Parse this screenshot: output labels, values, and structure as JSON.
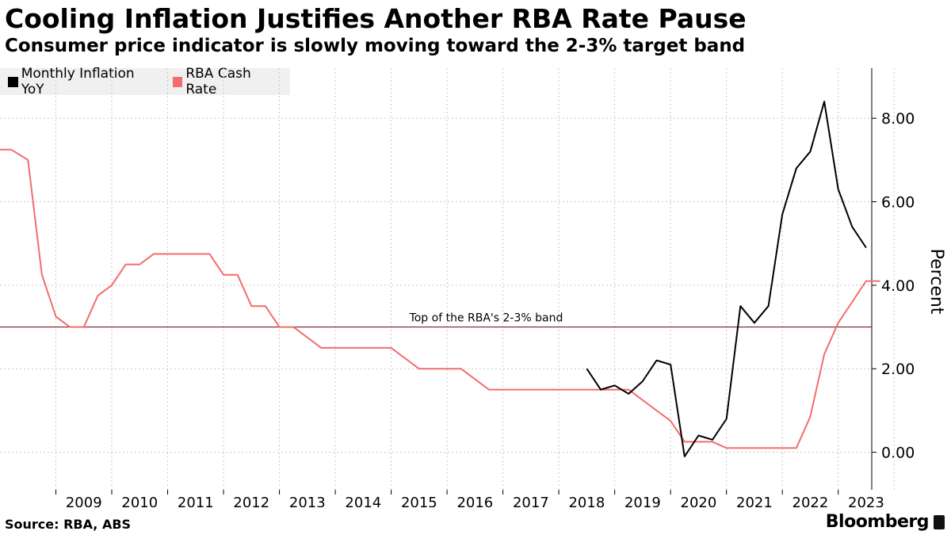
{
  "header": {
    "title": "Cooling Inflation Justifies Another RBA Rate Pause",
    "subtitle": "Consumer price indicator is slowly moving toward the 2-3% target band"
  },
  "footer": {
    "source": "Source: RBA, ABS",
    "brand": "Bloomberg"
  },
  "colors": {
    "inflation": "#000000",
    "cash_rate": "#f26d6d",
    "band_line": "#7a1f2b",
    "grid": "#c8c8c8"
  },
  "chart_data": {
    "type": "line",
    "title": "Cooling Inflation Justifies Another RBA Rate Pause",
    "subtitle": "Consumer price indicator is slowly moving toward the 2-3% target band",
    "ylabel": "Percent",
    "ylim": [
      -0.9,
      9.2
    ],
    "xlim": [
      2008.0,
      2023.6
    ],
    "y_ticks": [
      0,
      2,
      4,
      6,
      8
    ],
    "y_tick_labels": [
      "0.00",
      "2.00",
      "4.00",
      "6.00",
      "8.00"
    ],
    "x_tick_labels": [
      "2009",
      "2010",
      "2011",
      "2012",
      "2013",
      "2014",
      "2015",
      "2016",
      "2017",
      "2018",
      "2019",
      "2020",
      "2021",
      "2022",
      "2023"
    ],
    "grid": true,
    "legend_position": "top-left",
    "annotation": {
      "text": "Top of the RBA's 2-3% band",
      "y": 3
    },
    "series": [
      {
        "name": "Monthly Inflation YoY",
        "color": "#000000",
        "points": [
          [
            2018.5,
            2.0
          ],
          [
            2018.75,
            1.5
          ],
          [
            2019.0,
            1.6
          ],
          [
            2019.25,
            1.4
          ],
          [
            2019.5,
            1.7
          ],
          [
            2019.75,
            2.2
          ],
          [
            2020.0,
            2.1
          ],
          [
            2020.25,
            -0.1
          ],
          [
            2020.5,
            0.4
          ],
          [
            2020.75,
            0.3
          ],
          [
            2021.0,
            0.8
          ],
          [
            2021.25,
            3.5
          ],
          [
            2021.5,
            3.1
          ],
          [
            2021.75,
            3.5
          ],
          [
            2022.0,
            5.7
          ],
          [
            2022.25,
            6.8
          ],
          [
            2022.5,
            7.2
          ],
          [
            2022.75,
            8.4
          ],
          [
            2023.0,
            6.3
          ],
          [
            2023.25,
            5.4
          ],
          [
            2023.5,
            4.9
          ]
        ]
      },
      {
        "name": "RBA Cash Rate",
        "color": "#f26d6d",
        "points": [
          [
            2008.0,
            7.25
          ],
          [
            2008.2,
            7.25
          ],
          [
            2008.5,
            7.0
          ],
          [
            2008.75,
            4.25
          ],
          [
            2009.0,
            3.25
          ],
          [
            2009.25,
            3.0
          ],
          [
            2009.5,
            3.0
          ],
          [
            2009.75,
            3.75
          ],
          [
            2010.0,
            4.0
          ],
          [
            2010.25,
            4.5
          ],
          [
            2010.5,
            4.5
          ],
          [
            2010.75,
            4.75
          ],
          [
            2011.0,
            4.75
          ],
          [
            2011.25,
            4.75
          ],
          [
            2011.5,
            4.75
          ],
          [
            2011.75,
            4.75
          ],
          [
            2012.0,
            4.25
          ],
          [
            2012.25,
            4.25
          ],
          [
            2012.5,
            3.5
          ],
          [
            2012.75,
            3.5
          ],
          [
            2013.0,
            3.0
          ],
          [
            2013.25,
            3.0
          ],
          [
            2013.5,
            2.75
          ],
          [
            2013.75,
            2.5
          ],
          [
            2014.0,
            2.5
          ],
          [
            2015.0,
            2.5
          ],
          [
            2015.25,
            2.25
          ],
          [
            2015.5,
            2.0
          ],
          [
            2016.25,
            2.0
          ],
          [
            2016.5,
            1.75
          ],
          [
            2016.75,
            1.5
          ],
          [
            2019.25,
            1.5
          ],
          [
            2019.5,
            1.25
          ],
          [
            2019.75,
            1.0
          ],
          [
            2020.0,
            0.75
          ],
          [
            2020.25,
            0.25
          ],
          [
            2020.75,
            0.25
          ],
          [
            2021.0,
            0.1
          ],
          [
            2022.25,
            0.1
          ],
          [
            2022.5,
            0.85
          ],
          [
            2022.75,
            2.35
          ],
          [
            2023.0,
            3.1
          ],
          [
            2023.25,
            3.6
          ],
          [
            2023.5,
            4.1
          ],
          [
            2023.75,
            4.1
          ]
        ]
      }
    ]
  }
}
